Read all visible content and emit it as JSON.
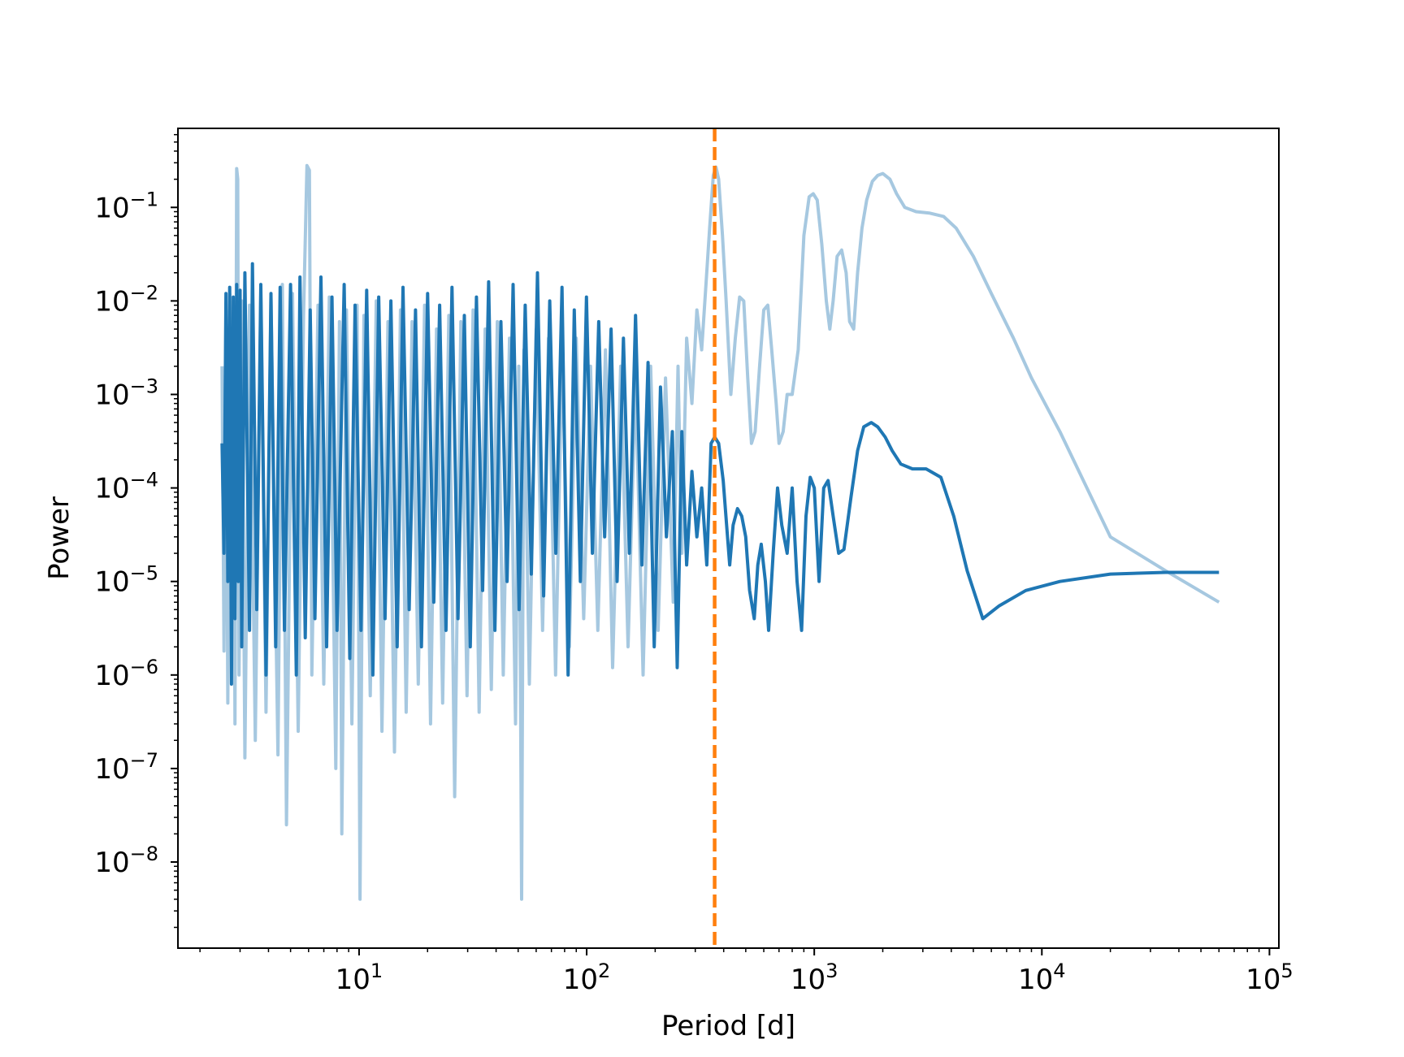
{
  "chart_data": {
    "type": "line",
    "title": "",
    "xlabel": "Period [d]",
    "ylabel": "Power",
    "xscale": "log",
    "yscale": "log",
    "xlim": [
      1.6,
      110000
    ],
    "ylim": [
      1.2e-09,
      0.7
    ],
    "grid": false,
    "legend": "none",
    "x_major_ticks": [
      {
        "value": 10,
        "base": "10",
        "exp": "1"
      },
      {
        "value": 100,
        "base": "10",
        "exp": "2"
      },
      {
        "value": 1000,
        "base": "10",
        "exp": "3"
      },
      {
        "value": 10000,
        "base": "10",
        "exp": "4"
      },
      {
        "value": 100000,
        "base": "10",
        "exp": "5"
      }
    ],
    "y_major_ticks": [
      {
        "value": 1e-08,
        "base": "10",
        "exp": "−8"
      },
      {
        "value": 1e-07,
        "base": "10",
        "exp": "−7"
      },
      {
        "value": 1e-06,
        "base": "10",
        "exp": "−6"
      },
      {
        "value": 1e-05,
        "base": "10",
        "exp": "−5"
      },
      {
        "value": 0.0001,
        "base": "10",
        "exp": "−4"
      },
      {
        "value": 0.001,
        "base": "10",
        "exp": "−3"
      },
      {
        "value": 0.01,
        "base": "10",
        "exp": "−2"
      },
      {
        "value": 0.1,
        "base": "10",
        "exp": "−1"
      }
    ],
    "vline": {
      "x": 365,
      "color": "#ff7f0e",
      "style": "dashed"
    },
    "series": [
      {
        "color": "#a6c8e0",
        "points": [
          [
            2.5,
            0.002
          ],
          [
            2.55,
            1.8e-06
          ],
          [
            2.6,
            0.008
          ],
          [
            2.65,
            5e-07
          ],
          [
            2.7,
            0.012
          ],
          [
            2.75,
            3e-06
          ],
          [
            2.8,
            0.006
          ],
          [
            2.85,
            3e-07
          ],
          [
            2.9,
            0.26
          ],
          [
            2.93,
            0.2
          ],
          [
            2.97,
            1e-06
          ],
          [
            3.05,
            0.01
          ],
          [
            3.15,
            1.3e-07
          ],
          [
            3.3,
            0.009
          ],
          [
            3.5,
            2e-07
          ],
          [
            3.7,
            0.012
          ],
          [
            3.9,
            4e-07
          ],
          [
            4.1,
            0.011
          ],
          [
            4.4,
            1.4e-07
          ],
          [
            4.6,
            0.015
          ],
          [
            4.8,
            2.5e-08
          ],
          [
            5.1,
            0.012
          ],
          [
            5.4,
            2.5e-07
          ],
          [
            5.7,
            0.007
          ],
          [
            5.9,
            0.28
          ],
          [
            6.05,
            0.25
          ],
          [
            6.2,
            1e-06
          ],
          [
            6.6,
            0.009
          ],
          [
            7.0,
            8e-07
          ],
          [
            7.4,
            0.011
          ],
          [
            7.9,
            1e-07
          ],
          [
            8.2,
            0.006
          ],
          [
            8.4,
            2e-08
          ],
          [
            8.8,
            0.008
          ],
          [
            9.3,
            3e-07
          ],
          [
            9.8,
            0.009
          ],
          [
            10.1,
            4e-09
          ],
          [
            10.5,
            0.007
          ],
          [
            11.2,
            6e-07
          ],
          [
            11.9,
            0.01
          ],
          [
            12.6,
            2.5e-07
          ],
          [
            13.4,
            0.006
          ],
          [
            14.3,
            1.5e-07
          ],
          [
            15.2,
            0.008
          ],
          [
            16.1,
            4e-07
          ],
          [
            17.1,
            0.006
          ],
          [
            18.2,
            8e-07
          ],
          [
            19.4,
            0.009
          ],
          [
            20.6,
            3e-07
          ],
          [
            21.9,
            0.005
          ],
          [
            23.3,
            5e-07
          ],
          [
            24.8,
            0.007
          ],
          [
            26.3,
            5e-08
          ],
          [
            28,
            0.006
          ],
          [
            29.8,
            6e-07
          ],
          [
            31.7,
            0.008
          ],
          [
            33.7,
            4e-07
          ],
          [
            35.8,
            0.005
          ],
          [
            38.1,
            7e-07
          ],
          [
            40.5,
            0.006
          ],
          [
            43,
            1e-06
          ],
          [
            45.8,
            0.004
          ],
          [
            48.7,
            3e-07
          ],
          [
            50.3,
            0.002
          ],
          [
            51.8,
            4e-09
          ],
          [
            53,
            0.003
          ],
          [
            56,
            8e-07
          ],
          [
            60,
            0.005
          ],
          [
            64,
            3e-06
          ],
          [
            68,
            0.004
          ],
          [
            73,
            1e-06
          ],
          [
            78,
            0.003
          ],
          [
            84,
            2e-06
          ],
          [
            90,
            0.004
          ],
          [
            97,
            4e-06
          ],
          [
            104,
            0.002
          ],
          [
            112,
            3e-06
          ],
          [
            121,
            0.003
          ],
          [
            130,
            1.2e-06
          ],
          [
            141,
            0.002
          ],
          [
            152,
            2e-06
          ],
          [
            164,
            0.0015
          ],
          [
            177,
            1e-06
          ],
          [
            191,
            0.002
          ],
          [
            206,
            3e-06
          ],
          [
            222,
            0.0015
          ],
          [
            240,
            6e-06
          ],
          [
            252,
            0.002
          ],
          [
            262,
            2e-05
          ],
          [
            275,
            0.004
          ],
          [
            290,
            0.0008
          ],
          [
            305,
            0.008
          ],
          [
            320,
            0.003
          ],
          [
            335,
            0.016
          ],
          [
            347,
            0.06
          ],
          [
            360,
            0.22
          ],
          [
            370,
            0.27
          ],
          [
            380,
            0.2
          ],
          [
            395,
            0.05
          ],
          [
            410,
            0.01
          ],
          [
            430,
            0.001
          ],
          [
            450,
            0.004
          ],
          [
            470,
            0.011
          ],
          [
            490,
            0.01
          ],
          [
            510,
            0.0015
          ],
          [
            530,
            0.0003
          ],
          [
            550,
            0.0004
          ],
          [
            575,
            0.002
          ],
          [
            600,
            0.008
          ],
          [
            625,
            0.009
          ],
          [
            650,
            0.003
          ],
          [
            680,
            0.0008
          ],
          [
            700,
            0.0003
          ],
          [
            730,
            0.0004
          ],
          [
            760,
            0.001
          ],
          [
            800,
            0.001
          ],
          [
            850,
            0.003
          ],
          [
            900,
            0.05
          ],
          [
            950,
            0.13
          ],
          [
            990,
            0.14
          ],
          [
            1030,
            0.12
          ],
          [
            1080,
            0.04
          ],
          [
            1130,
            0.01
          ],
          [
            1170,
            0.005
          ],
          [
            1210,
            0.01
          ],
          [
            1260,
            0.03
          ],
          [
            1320,
            0.035
          ],
          [
            1380,
            0.02
          ],
          [
            1430,
            0.006
          ],
          [
            1490,
            0.005
          ],
          [
            1550,
            0.02
          ],
          [
            1620,
            0.06
          ],
          [
            1700,
            0.12
          ],
          [
            1800,
            0.19
          ],
          [
            1900,
            0.22
          ],
          [
            2000,
            0.23
          ],
          [
            2150,
            0.2
          ],
          [
            2300,
            0.14
          ],
          [
            2500,
            0.1
          ],
          [
            2800,
            0.09
          ],
          [
            3200,
            0.087
          ],
          [
            3700,
            0.08
          ],
          [
            4200,
            0.06
          ],
          [
            5000,
            0.03
          ],
          [
            6000,
            0.012
          ],
          [
            7500,
            0.004
          ],
          [
            9000,
            0.0015
          ],
          [
            12000,
            0.0004
          ],
          [
            20000,
            3e-05
          ],
          [
            35000,
            1.3e-05
          ],
          [
            60000,
            6e-06
          ]
        ]
      },
      {
        "color": "#1f77b4",
        "points": [
          [
            2.5,
            0.0003
          ],
          [
            2.55,
            2e-05
          ],
          [
            2.6,
            0.012
          ],
          [
            2.65,
            1e-05
          ],
          [
            2.7,
            0.014
          ],
          [
            2.75,
            8e-07
          ],
          [
            2.8,
            0.011
          ],
          [
            2.85,
            4e-06
          ],
          [
            2.9,
            0.015
          ],
          [
            2.95,
            1e-05
          ],
          [
            3.0,
            0.013
          ],
          [
            3.05,
            2e-06
          ],
          [
            3.15,
            0.02
          ],
          [
            3.3,
            3e-06
          ],
          [
            3.4,
            0.025
          ],
          [
            3.55,
            5e-06
          ],
          [
            3.7,
            0.015
          ],
          [
            3.9,
            1e-06
          ],
          [
            4.1,
            0.012
          ],
          [
            4.3,
            2e-06
          ],
          [
            4.5,
            0.014
          ],
          [
            4.7,
            3e-06
          ],
          [
            5.0,
            0.015
          ],
          [
            5.3,
            1e-06
          ],
          [
            5.5,
            0.018
          ],
          [
            5.8,
            2.5e-06
          ],
          [
            6.1,
            0.008
          ],
          [
            6.4,
            4e-06
          ],
          [
            6.8,
            0.018
          ],
          [
            7.2,
            2e-06
          ],
          [
            7.6,
            0.011
          ],
          [
            8.0,
            3e-06
          ],
          [
            8.6,
            0.015
          ],
          [
            9.1,
            1.5e-06
          ],
          [
            9.6,
            0.009
          ],
          [
            10.2,
            3e-06
          ],
          [
            10.8,
            0.013
          ],
          [
            11.5,
            1e-06
          ],
          [
            12.2,
            0.011
          ],
          [
            13,
            4e-06
          ],
          [
            13.8,
            0.01
          ],
          [
            14.7,
            2e-06
          ],
          [
            15.6,
            0.014
          ],
          [
            16.6,
            5e-06
          ],
          [
            17.7,
            0.008
          ],
          [
            18.8,
            2e-06
          ],
          [
            20,
            0.012
          ],
          [
            21.3,
            6e-06
          ],
          [
            22.6,
            0.009
          ],
          [
            24.1,
            3e-06
          ],
          [
            25.6,
            0.014
          ],
          [
            27.2,
            4e-06
          ],
          [
            29,
            0.007
          ],
          [
            30.8,
            2e-06
          ],
          [
            32.8,
            0.011
          ],
          [
            34.9,
            8e-06
          ],
          [
            37.1,
            0.016
          ],
          [
            39.5,
            3e-06
          ],
          [
            42,
            0.006
          ],
          [
            44.7,
            1e-05
          ],
          [
            47.5,
            0.015
          ],
          [
            50.5,
            5e-06
          ],
          [
            53.7,
            0.009
          ],
          [
            57.1,
            1.2e-05
          ],
          [
            60.8,
            0.02
          ],
          [
            64.7,
            7e-06
          ],
          [
            68.8,
            0.01
          ],
          [
            73.2,
            2e-05
          ],
          [
            77.9,
            0.014
          ],
          [
            82.9,
            1e-06
          ],
          [
            88.2,
            0.008
          ],
          [
            93.8,
            1e-05
          ],
          [
            99.8,
            0.011
          ],
          [
            106,
            2e-05
          ],
          [
            113,
            0.006
          ],
          [
            120,
            3e-05
          ],
          [
            128,
            0.005
          ],
          [
            136,
            1e-05
          ],
          [
            145,
            0.004
          ],
          [
            154,
            2e-05
          ],
          [
            164,
            0.007
          ],
          [
            175,
            1.5e-05
          ],
          [
            186,
            0.0022
          ],
          [
            198,
            2e-06
          ],
          [
            211,
            0.0012
          ],
          [
            224,
            3e-05
          ],
          [
            238,
            0.0004
          ],
          [
            250,
            1.2e-06
          ],
          [
            262,
            0.0004
          ],
          [
            275,
            1.5e-05
          ],
          [
            290,
            0.00015
          ],
          [
            305,
            3e-05
          ],
          [
            320,
            0.0001
          ],
          [
            337,
            1.5e-05
          ],
          [
            352,
            0.0003
          ],
          [
            365,
            0.00035
          ],
          [
            380,
            0.0003
          ],
          [
            398,
            0.00012
          ],
          [
            412,
            4e-05
          ],
          [
            425,
            1.5e-05
          ],
          [
            440,
            4e-05
          ],
          [
            460,
            6e-05
          ],
          [
            480,
            5e-05
          ],
          [
            500,
            3e-05
          ],
          [
            520,
            8e-06
          ],
          [
            545,
            4e-06
          ],
          [
            565,
            1.5e-05
          ],
          [
            585,
            2.5e-05
          ],
          [
            610,
            1e-05
          ],
          [
            630,
            3e-06
          ],
          [
            660,
            2e-05
          ],
          [
            690,
            0.0001
          ],
          [
            720,
            4e-05
          ],
          [
            760,
            2e-05
          ],
          [
            800,
            0.0001
          ],
          [
            840,
            1e-05
          ],
          [
            880,
            3e-06
          ],
          [
            920,
            5e-05
          ],
          [
            960,
            0.00013
          ],
          [
            1000,
            0.0001
          ],
          [
            1050,
            1e-05
          ],
          [
            1100,
            0.0001
          ],
          [
            1150,
            0.00012
          ],
          [
            1210,
            5e-05
          ],
          [
            1280,
            2e-05
          ],
          [
            1350,
            2.2e-05
          ],
          [
            1450,
            8e-05
          ],
          [
            1550,
            0.00025
          ],
          [
            1650,
            0.00045
          ],
          [
            1780,
            0.0005
          ],
          [
            1900,
            0.00045
          ],
          [
            2050,
            0.00035
          ],
          [
            2200,
            0.00025
          ],
          [
            2400,
            0.00018
          ],
          [
            2700,
            0.00016
          ],
          [
            3100,
            0.00016
          ],
          [
            3600,
            0.00013
          ],
          [
            4100,
            5e-05
          ],
          [
            4700,
            1.3e-05
          ],
          [
            5500,
            4e-06
          ],
          [
            6500,
            5.5e-06
          ],
          [
            8500,
            8e-06
          ],
          [
            12000,
            1e-05
          ],
          [
            20000,
            1.2e-05
          ],
          [
            35000,
            1.25e-05
          ],
          [
            60000,
            1.25e-05
          ]
        ]
      }
    ]
  }
}
